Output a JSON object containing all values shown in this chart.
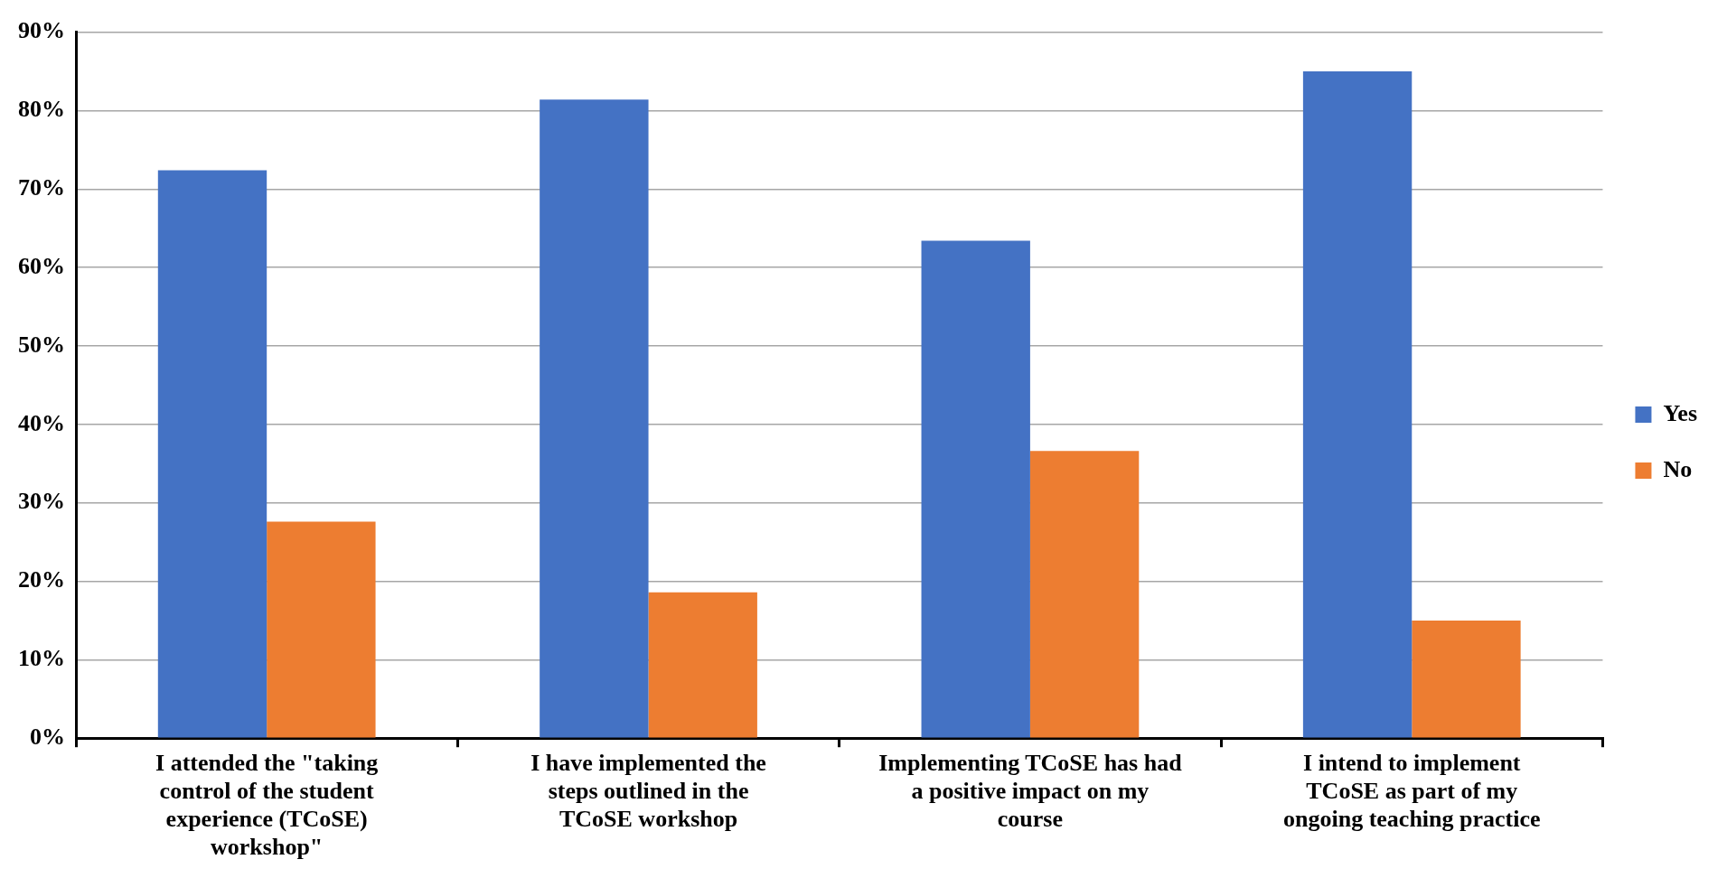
{
  "chart_data": {
    "type": "bar",
    "categories": [
      "I attended the \"taking control of the student experience (TCoSE) workshop\"",
      "I have implemented the steps outlined in the TCoSE workshop",
      "Implementing TCoSE has had a positive impact on my course",
      "I intend to implement TCoSE as part of my ongoing teaching practice"
    ],
    "series": [
      {
        "name": "Yes",
        "color": "#4472c4",
        "values": [
          72.4,
          81.4,
          63.4,
          85.0
        ]
      },
      {
        "name": "No",
        "color": "#ed7d31",
        "values": [
          27.6,
          18.6,
          36.6,
          15.0
        ]
      }
    ],
    "ylim": [
      0,
      90
    ],
    "yticks": [
      {
        "value": 0,
        "label": "0%"
      },
      {
        "value": 10,
        "label": "10%"
      },
      {
        "value": 20,
        "label": "20%"
      },
      {
        "value": 30,
        "label": "30%"
      },
      {
        "value": 40,
        "label": "40%"
      },
      {
        "value": 50,
        "label": "50%"
      },
      {
        "value": 60,
        "label": "60%"
      },
      {
        "value": 70,
        "label": "70%"
      },
      {
        "value": 80,
        "label": "80%"
      },
      {
        "value": 90,
        "label": "90%"
      }
    ],
    "grid": "y",
    "legend": "right"
  }
}
